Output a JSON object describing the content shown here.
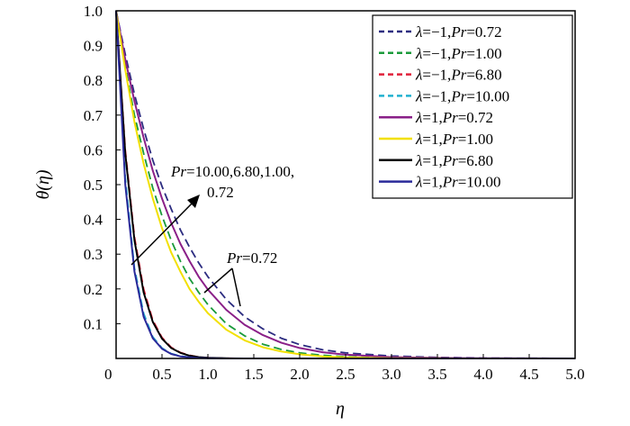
{
  "chart_data": {
    "type": "line",
    "xlabel": "η",
    "ylabel": "θ(η)",
    "xlim": [
      0,
      5
    ],
    "ylim": [
      0,
      1
    ],
    "xticks": [
      "0",
      "0.5",
      "1.0",
      "1.5",
      "2.0",
      "2.5",
      "3.0",
      "3.5",
      "4.0",
      "4.5",
      "5.0"
    ],
    "yticks": [
      "0.1",
      "0.2",
      "0.3",
      "0.4",
      "0.5",
      "0.6",
      "0.7",
      "0.8",
      "0.9",
      "1.0"
    ],
    "legend_position": "top-right",
    "grid": false,
    "x": [
      0,
      0.1,
      0.2,
      0.3,
      0.4,
      0.5,
      0.6,
      0.7,
      0.8,
      0.9,
      1.0,
      1.2,
      1.4,
      1.6,
      1.8,
      2.0,
      2.25,
      2.5,
      3.0,
      3.5,
      4.0,
      4.5,
      5.0
    ],
    "series": [
      {
        "name": "λ=−1,Pr=0.72",
        "color": "#2c2c80",
        "dashed": true,
        "values": [
          1.0,
          0.875,
          0.76,
          0.66,
          0.57,
          0.495,
          0.43,
          0.37,
          0.32,
          0.275,
          0.235,
          0.17,
          0.12,
          0.085,
          0.058,
          0.04,
          0.025,
          0.016,
          0.007,
          0.003,
          0.001,
          0.0004,
          0.0002
        ]
      },
      {
        "name": "λ=−1,Pr=1.00",
        "color": "#1a9a3a",
        "dashed": true,
        "values": [
          1.0,
          0.84,
          0.7,
          0.59,
          0.49,
          0.41,
          0.34,
          0.28,
          0.23,
          0.19,
          0.155,
          0.1,
          0.065,
          0.041,
          0.026,
          0.016,
          0.009,
          0.005,
          0.0015,
          0.0005,
          0.0002,
          0.0001,
          0
        ]
      },
      {
        "name": "λ=−1,Pr=6.80",
        "color": "#e0203a",
        "dashed": true,
        "values": [
          1.0,
          0.6,
          0.35,
          0.2,
          0.11,
          0.06,
          0.032,
          0.017,
          0.009,
          0.004,
          0.002,
          0.0006,
          0.0002,
          0,
          0,
          0,
          0,
          0,
          0,
          0,
          0,
          0,
          0
        ]
      },
      {
        "name": "λ=−1,Pr=10.00",
        "color": "#20b0d0",
        "dashed": true,
        "values": [
          1.0,
          0.52,
          0.26,
          0.13,
          0.062,
          0.03,
          0.014,
          0.007,
          0.003,
          0.0015,
          0.0007,
          0.0002,
          0,
          0,
          0,
          0,
          0,
          0,
          0,
          0,
          0,
          0,
          0
        ]
      },
      {
        "name": "λ=1,Pr=0.72",
        "color": "#8a2088",
        "dashed": false,
        "values": [
          1.0,
          0.86,
          0.74,
          0.635,
          0.54,
          0.46,
          0.39,
          0.33,
          0.28,
          0.235,
          0.198,
          0.14,
          0.097,
          0.067,
          0.045,
          0.03,
          0.018,
          0.011,
          0.004,
          0.0015,
          0.0005,
          0.0002,
          0.0001
        ]
      },
      {
        "name": "λ=1,Pr=1.00",
        "color": "#f2e000",
        "dashed": false,
        "values": [
          1.0,
          0.83,
          0.68,
          0.56,
          0.46,
          0.375,
          0.305,
          0.25,
          0.2,
          0.163,
          0.13,
          0.083,
          0.052,
          0.032,
          0.02,
          0.012,
          0.006,
          0.003,
          0.0008,
          0.0002,
          0.0001,
          0,
          0
        ]
      },
      {
        "name": "λ=1,Pr=6.80",
        "color": "#000000",
        "dashed": false,
        "values": [
          1.0,
          0.59,
          0.34,
          0.19,
          0.105,
          0.057,
          0.03,
          0.016,
          0.008,
          0.004,
          0.002,
          0.0005,
          0.0001,
          0,
          0,
          0,
          0,
          0,
          0,
          0,
          0,
          0,
          0
        ]
      },
      {
        "name": "λ=1,Pr=10.00",
        "color": "#2a2a9a",
        "dashed": false,
        "values": [
          1.0,
          0.5,
          0.25,
          0.12,
          0.058,
          0.028,
          0.013,
          0.006,
          0.003,
          0.0014,
          0.0006,
          0.0001,
          0,
          0,
          0,
          0,
          0,
          0,
          0,
          0,
          0,
          0,
          0
        ]
      }
    ],
    "annotations": [
      {
        "text_prefix": "Pr",
        "text_rest": "=10.00,6.80,1.00,",
        "text_line2": "0.72"
      },
      {
        "text_prefix": "Pr",
        "text_rest": "=0.72"
      }
    ]
  }
}
